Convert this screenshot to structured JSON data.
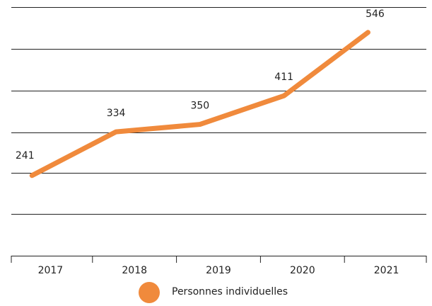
{
  "chart_data": {
    "type": "line",
    "categories": [
      "2017",
      "2018",
      "2019",
      "2020",
      "2021"
    ],
    "series": [
      {
        "name": "Personnes individuelles",
        "color": "#f08a3c",
        "values": [
          241,
          334,
          350,
          411,
          546
        ]
      }
    ],
    "ylim": [
      70,
      600
    ],
    "legend": "bottom"
  }
}
